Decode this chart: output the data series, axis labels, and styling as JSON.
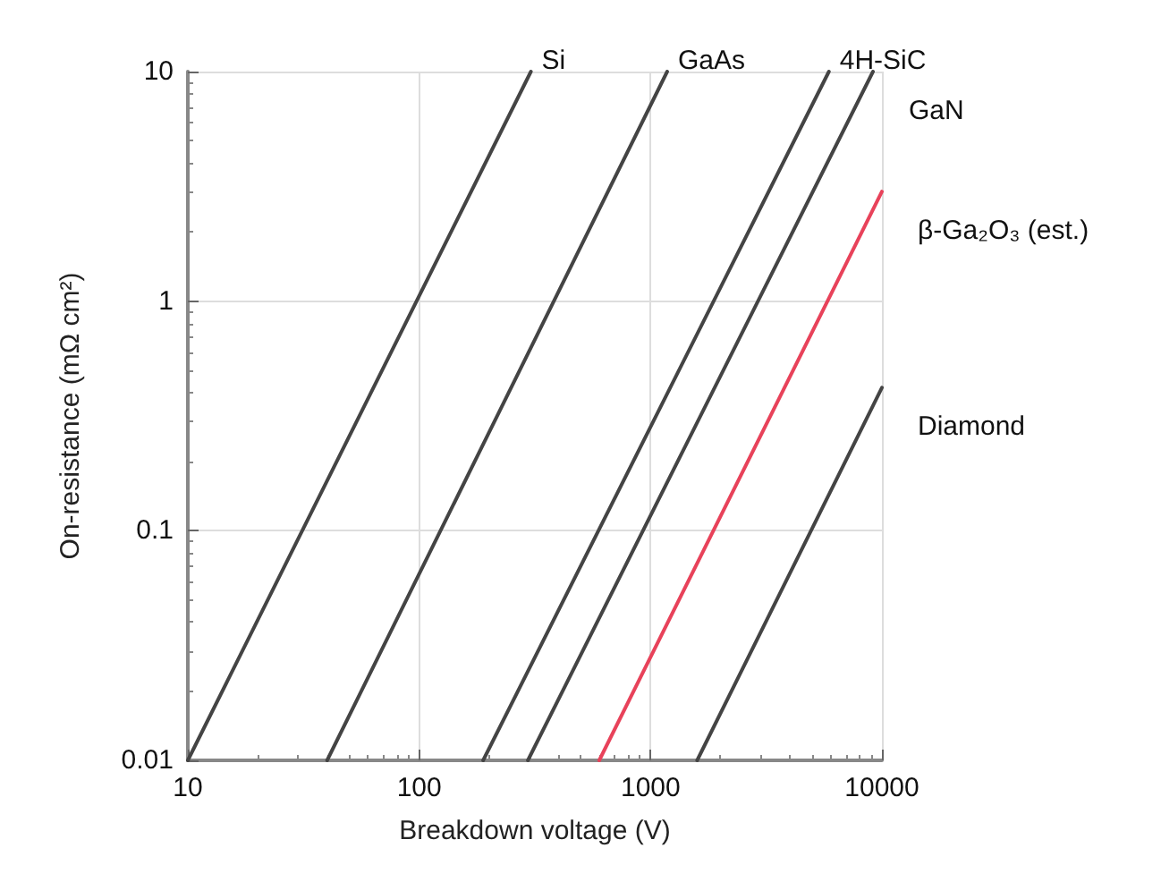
{
  "chart_data": {
    "type": "line",
    "xlabel": "Breakdown voltage (V)",
    "ylabel": "On-resistance (mΩ cm²)",
    "log": "xy",
    "xlim": [
      10,
      10000
    ],
    "ylim": [
      0.01,
      10
    ],
    "xticks": [
      10,
      100,
      1000,
      10000
    ],
    "yticks": [
      0.01,
      0.1,
      1,
      10
    ],
    "grid": true,
    "legend": false,
    "marker": "none",
    "line_style": "solid",
    "series": [
      {
        "name": "Si",
        "color": "#444444",
        "x": [
          10,
          304
        ],
        "values": [
          0.01,
          10
        ]
      },
      {
        "name": "GaAs",
        "color": "#444444",
        "x": [
          40,
          1180
        ],
        "values": [
          0.01,
          10
        ]
      },
      {
        "name": "4H-SiC",
        "color": "#444444",
        "x": [
          189,
          5900
        ],
        "values": [
          0.01,
          10
        ]
      },
      {
        "name": "GaN",
        "color": "#444444",
        "x": [
          295,
          9150
        ],
        "values": [
          0.01,
          10
        ]
      },
      {
        "name": "β-Ga₂O₃ (est.)",
        "color": "#e8425a",
        "x": [
          600,
          10000
        ],
        "values": [
          0.01,
          3
        ]
      },
      {
        "name": "Diamond",
        "color": "#444444",
        "x": [
          1590,
          10000
        ],
        "values": [
          0.01,
          0.42
        ]
      }
    ]
  }
}
